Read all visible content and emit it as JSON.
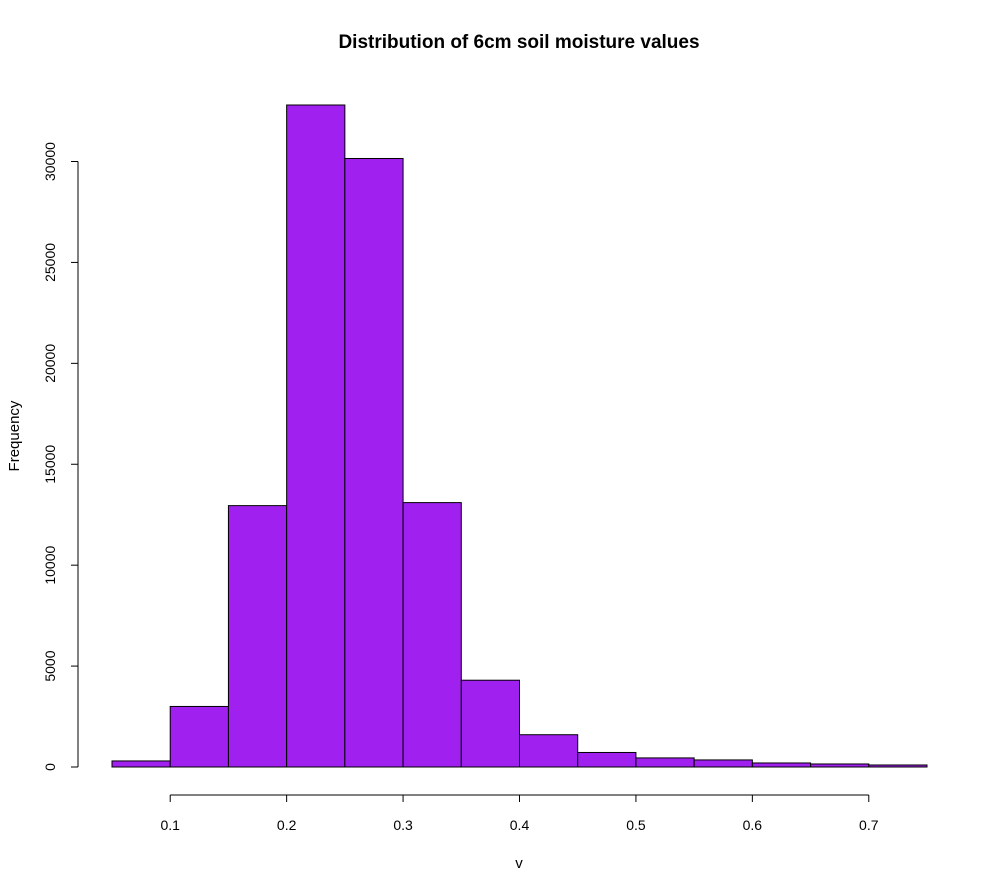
{
  "chart_data": {
    "type": "bar",
    "title": "Distribution of 6cm soil moisture values",
    "xlabel": "v",
    "ylabel": "Frequency",
    "bar_color": "#A020F0",
    "grid": false,
    "xlim": [
      0.05,
      0.75
    ],
    "ylim": [
      0,
      32800
    ],
    "bins": [
      {
        "start": 0.05,
        "end": 0.1,
        "value": 300
      },
      {
        "start": 0.1,
        "end": 0.15,
        "value": 3000
      },
      {
        "start": 0.15,
        "end": 0.2,
        "value": 12950
      },
      {
        "start": 0.2,
        "end": 0.25,
        "value": 32800
      },
      {
        "start": 0.25,
        "end": 0.3,
        "value": 30150
      },
      {
        "start": 0.3,
        "end": 0.35,
        "value": 13100
      },
      {
        "start": 0.35,
        "end": 0.4,
        "value": 4300
      },
      {
        "start": 0.4,
        "end": 0.45,
        "value": 1600
      },
      {
        "start": 0.45,
        "end": 0.5,
        "value": 720
      },
      {
        "start": 0.5,
        "end": 0.55,
        "value": 450
      },
      {
        "start": 0.55,
        "end": 0.6,
        "value": 350
      },
      {
        "start": 0.6,
        "end": 0.65,
        "value": 200
      },
      {
        "start": 0.65,
        "end": 0.7,
        "value": 150
      },
      {
        "start": 0.7,
        "end": 0.75,
        "value": 100
      }
    ],
    "x_ticks": [
      {
        "value": 0.1,
        "label": "0.1"
      },
      {
        "value": 0.2,
        "label": "0.2"
      },
      {
        "value": 0.3,
        "label": "0.3"
      },
      {
        "value": 0.4,
        "label": "0.4"
      },
      {
        "value": 0.5,
        "label": "0.5"
      },
      {
        "value": 0.6,
        "label": "0.6"
      },
      {
        "value": 0.7,
        "label": "0.7"
      }
    ],
    "y_ticks": [
      {
        "value": 0,
        "label": "0"
      },
      {
        "value": 5000,
        "label": "5000"
      },
      {
        "value": 10000,
        "label": "10000"
      },
      {
        "value": 15000,
        "label": "15000"
      },
      {
        "value": 20000,
        "label": "20000"
      },
      {
        "value": 25000,
        "label": "25000"
      },
      {
        "value": 30000,
        "label": "30000"
      }
    ]
  }
}
